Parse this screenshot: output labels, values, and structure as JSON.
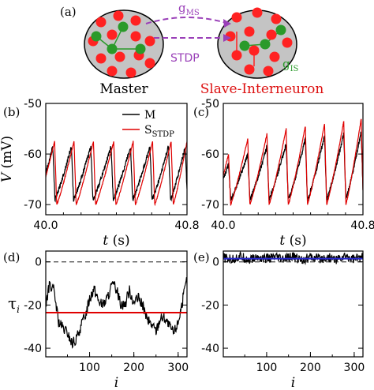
{
  "diagram": {
    "panel_label": "(a)",
    "master_label": "Master",
    "slave_label": "Slave-Interneuron",
    "g_ms": {
      "base": "g",
      "sub": "MS"
    },
    "stdp_label": "STDP",
    "g_is": {
      "base": "g",
      "sub": "IS"
    },
    "colors": {
      "excitatory": "#ff2222",
      "inhibitory": "#2a9a2a",
      "coupling": "#9a40b8",
      "slave_text": "#dd1111"
    }
  },
  "chart_data": [
    {
      "id": "b",
      "panel_label": "(b)",
      "type": "line",
      "ylabel": {
        "italic": "V",
        "rest": " (mV)"
      },
      "xlabel": {
        "italic": "t",
        "rest": " (s)"
      },
      "xlim": [
        40.0,
        40.8
      ],
      "ylim": [
        -72,
        -50
      ],
      "xticks": [
        40.0,
        40.8
      ],
      "xticklabels": [
        "40.0",
        "40.8"
      ],
      "yticks": [
        -70,
        -60,
        -50
      ],
      "yticklabels": [
        "-70",
        "-60",
        "-50"
      ],
      "legend": {
        "position": "top-right",
        "entries": [
          {
            "label": "M",
            "color": "#000000"
          },
          {
            "label": "S",
            "sub": "STDP",
            "color": "#e00000"
          }
        ]
      },
      "series": [
        {
          "name": "M",
          "color": "#000000",
          "spike_times": [
            40.04,
            40.145,
            40.255,
            40.37,
            40.48,
            40.59,
            40.695,
            40.79
          ],
          "peak": -58.5,
          "reset": -69.0
        },
        {
          "name": "S_STDP",
          "color": "#e00000",
          "spike_times": [
            40.05,
            40.16,
            40.27,
            40.385,
            40.495,
            40.605,
            40.71,
            40.8
          ],
          "peak": -57.5,
          "reset": -70.0
        }
      ]
    },
    {
      "id": "c",
      "panel_label": "(c)",
      "type": "line",
      "xlabel": {
        "italic": "t",
        "rest": " (s)"
      },
      "xlim": [
        40.0,
        40.8
      ],
      "ylim": [
        -72,
        -50
      ],
      "xticks": [
        40.0,
        40.8
      ],
      "xticklabels": [
        "40.0",
        "40.8"
      ],
      "yticks": [
        -70,
        -60,
        -50
      ],
      "yticklabels": [
        "-70",
        "-60",
        "-50"
      ],
      "series": [
        {
          "name": "M",
          "color": "#000000",
          "spike_times": [
            40.03,
            40.14,
            40.25,
            40.36,
            40.47,
            40.58,
            40.69,
            40.79
          ],
          "peaks": [
            -62,
            -60,
            -58.5,
            -58,
            -57,
            -56.5,
            -56,
            -55.5
          ],
          "reset": -69.0
        },
        {
          "name": "S_STDP",
          "color": "#e00000",
          "spike_times": [
            40.03,
            40.14,
            40.25,
            40.36,
            40.47,
            40.58,
            40.69,
            40.79
          ],
          "peaks": [
            -60,
            -57,
            -56,
            -55,
            -54.5,
            -54,
            -53.5,
            -53
          ],
          "reset": -70.0
        }
      ]
    },
    {
      "id": "d",
      "panel_label": "(d)",
      "type": "line",
      "ylabel": {
        "base": "τ",
        "sub": "i"
      },
      "xlabel": {
        "italic": "i",
        "rest": ""
      },
      "xlim": [
        1,
        320
      ],
      "ylim": [
        -44,
        5
      ],
      "xticks": [
        100,
        200,
        300
      ],
      "xticklabels": [
        "100",
        "200",
        "300"
      ],
      "yticks": [
        -40,
        -20,
        0
      ],
      "yticklabels": [
        "-40",
        "-20",
        "0"
      ],
      "zero_line": {
        "value": 0,
        "style": "dashed",
        "color": "#555555"
      },
      "mean_line": {
        "value": -23.5,
        "color": "#e00000"
      },
      "series": [
        {
          "name": "tau_i",
          "color": "#000000",
          "x": [
            1,
            10,
            20,
            30,
            40,
            50,
            60,
            70,
            80,
            90,
            100,
            110,
            120,
            130,
            140,
            150,
            160,
            170,
            180,
            190,
            200,
            210,
            220,
            230,
            240,
            250,
            260,
            270,
            280,
            290,
            300,
            310,
            320
          ],
          "y": [
            -20,
            -10,
            -14,
            -28,
            -31,
            -33,
            -38,
            -36,
            -30,
            -25,
            -17,
            -12,
            -18,
            -20,
            -17,
            -11,
            -12,
            -19,
            -20,
            -13,
            -19,
            -17,
            -20,
            -27,
            -29,
            -32,
            -26,
            -26,
            -30,
            -33,
            -28,
            -18,
            -8
          ]
        }
      ]
    },
    {
      "id": "e",
      "panel_label": "(e)",
      "type": "line",
      "xlabel": {
        "italic": "i",
        "rest": ""
      },
      "xlim": [
        1,
        320
      ],
      "ylim": [
        -44,
        5
      ],
      "xticks": [
        100,
        200,
        300
      ],
      "xticklabels": [
        "100",
        "200",
        "300"
      ],
      "yticks": [
        -40,
        -20,
        0
      ],
      "yticklabels": [
        "-40",
        "-20",
        "0"
      ],
      "zero_line": {
        "value": 0,
        "style": "dashed",
        "color": "#555555"
      },
      "mean_line": {
        "value": 1.5,
        "color": "#2a2ad0"
      },
      "series": [
        {
          "name": "tau_i",
          "color": "#000000",
          "x": [
            1,
            20,
            40,
            60,
            80,
            100,
            120,
            140,
            160,
            180,
            200,
            220,
            240,
            260,
            280,
            300,
            320
          ],
          "y": [
            2,
            1,
            2.5,
            1,
            2,
            1.5,
            2,
            1,
            2.5,
            1,
            2,
            1.5,
            2,
            1,
            2.5,
            1.5,
            2
          ]
        }
      ]
    }
  ]
}
